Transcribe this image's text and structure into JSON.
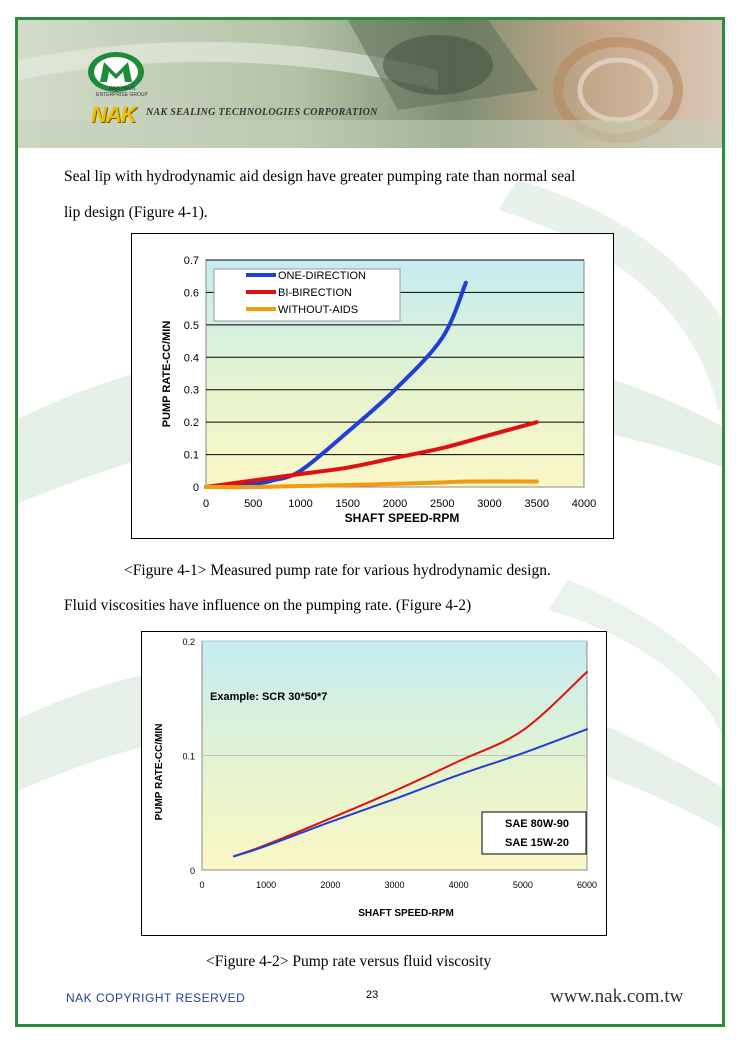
{
  "header": {
    "company": "NAK SEALING TECHNOLOGIES CORPORATION",
    "logo_text": "NAK",
    "group_text": "MAO HEUN ENTERPRISE GROUP"
  },
  "body": {
    "para1_line1": "Seal lip with hydrodynamic aid design have greater pumping rate than normal seal",
    "para1_line2": "lip design (Figure 4-1).",
    "caption1": "<Figure 4-1> Measured pump rate for various hydrodynamic design.",
    "para2": "Fluid viscosities have influence on the pumping rate. (Figure 4-2)",
    "caption2": "<Figure 4-2> Pump rate versus fluid viscosity"
  },
  "footer": {
    "copyright": "NAK COPYRIGHT RESERVED",
    "page": "23",
    "url": "www.nak.com.tw"
  },
  "colors": {
    "border": "#2e8b3e",
    "footer_text": "#1f3f9f"
  },
  "chart_data": [
    {
      "type": "line",
      "title": "",
      "xlabel": "SHAFT SPEED-RPM",
      "ylabel": "PUMP RATE-CC/MIN",
      "xlim": [
        0,
        4000
      ],
      "ylim": [
        0,
        0.7
      ],
      "xticks": [
        "0",
        "500",
        "1000",
        "1500",
        "2000",
        "2500",
        "3000",
        "3500",
        "4000"
      ],
      "yticks": [
        "0",
        "0.1",
        "0.2",
        "0.3",
        "0.4",
        "0.5",
        "0.6",
        "0.7"
      ],
      "grid": true,
      "legend": "top-left",
      "series": [
        {
          "name": "ONE-DIRECTION",
          "color": "#1f3fd8",
          "x": [
            0,
            500,
            700,
            1000,
            1500,
            2000,
            2500,
            2750
          ],
          "y": [
            0,
            0.01,
            0.02,
            0.05,
            0.17,
            0.3,
            0.46,
            0.63
          ]
        },
        {
          "name": "BI-BIRECTION",
          "color": "#e01010",
          "x": [
            0,
            500,
            1000,
            1500,
            2000,
            2500,
            3000,
            3500
          ],
          "y": [
            0,
            0.02,
            0.04,
            0.06,
            0.09,
            0.12,
            0.16,
            0.2
          ]
        },
        {
          "name": "WITHOUT-AIDS",
          "color": "#f29a10",
          "x": [
            0,
            500,
            1000,
            1500,
            2000,
            2500,
            2750,
            3500
          ],
          "y": [
            0,
            0,
            0.003,
            0.006,
            0.01,
            0.014,
            0.017,
            0.017
          ]
        }
      ]
    },
    {
      "type": "line",
      "title": "",
      "annotation": "Example: SCR 30*50*7",
      "xlabel": "SHAFT SPEED-RPM",
      "ylabel": "PUMP RATE-CC/MIN",
      "xlim": [
        0,
        6000
      ],
      "ylim": [
        0,
        0.2
      ],
      "xticks": [
        "0",
        "1000",
        "2000",
        "3000",
        "4000",
        "5000",
        "6000"
      ],
      "yticks": [
        "0",
        "0.1",
        "0.2"
      ],
      "grid": true,
      "legend": "bottom-right",
      "series": [
        {
          "name": "SAE 80W-90",
          "color": "#e01010",
          "x": [
            500,
            1000,
            2000,
            3000,
            4000,
            5000,
            6000
          ],
          "y": [
            0.012,
            0.022,
            0.045,
            0.069,
            0.095,
            0.122,
            0.173
          ]
        },
        {
          "name": "SAE 15W-20",
          "color": "#1f3fd8",
          "x": [
            500,
            1000,
            2000,
            3000,
            4000,
            5000,
            6000
          ],
          "y": [
            0.012,
            0.021,
            0.042,
            0.062,
            0.083,
            0.102,
            0.123
          ]
        }
      ]
    }
  ]
}
